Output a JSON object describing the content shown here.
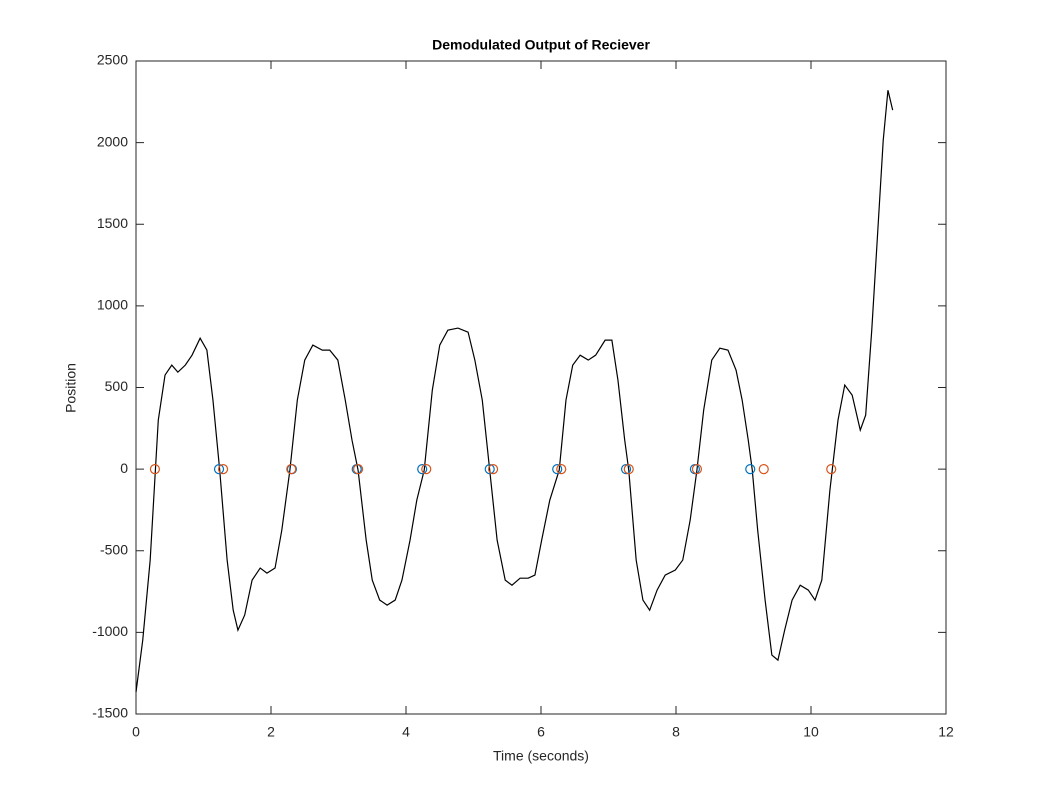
{
  "chart_data": {
    "type": "line",
    "title": "Demodulated Output of Reciever",
    "x_label": "Time (seconds)",
    "y_label": "Position",
    "xlim": [
      0,
      12
    ],
    "ylim": [
      -1500,
      2500
    ],
    "xticks": [
      0,
      2,
      4,
      6,
      8,
      10,
      12
    ],
    "yticks": [
      -1500,
      -1000,
      -500,
      0,
      500,
      1000,
      1500,
      2000,
      2500
    ],
    "series": [
      {
        "color": "#000000",
        "style": "line",
        "x": [
          0,
          0.1,
          0.21,
          0.33,
          0.43,
          0.53,
          0.62,
          0.73,
          0.83,
          0.95,
          1.05,
          1.14,
          1.24,
          1.35,
          1.44,
          1.51,
          1.61,
          1.72,
          1.84,
          1.94,
          2.06,
          2.16,
          2.28,
          2.39,
          2.5,
          2.62,
          2.76,
          2.87,
          2.99,
          3.1,
          3.2,
          3.29,
          3.41,
          3.5,
          3.61,
          3.72,
          3.84,
          3.94,
          4.06,
          4.16,
          4.27,
          4.39,
          4.5,
          4.62,
          4.77,
          4.92,
          5.02,
          5.13,
          5.24,
          5.35,
          5.47,
          5.57,
          5.69,
          5.81,
          5.91,
          6.01,
          6.13,
          6.27,
          6.37,
          6.47,
          6.58,
          6.7,
          6.81,
          6.95,
          7.05,
          7.14,
          7.24,
          7.3,
          7.41,
          7.51,
          7.61,
          7.72,
          7.84,
          7.99,
          8.1,
          8.21,
          8.31,
          8.41,
          8.53,
          8.65,
          8.77,
          8.89,
          8.98,
          9.07,
          9.13,
          9.21,
          9.32,
          9.42,
          9.51,
          9.61,
          9.72,
          9.84,
          9.96,
          10.06,
          10.16,
          10.28,
          10.4,
          10.5,
          10.61,
          10.73,
          10.81,
          10.9,
          10.99,
          11.07,
          11.14,
          11.21
        ],
        "values": [
          -1366,
          -1047,
          -557,
          300,
          576,
          637,
          594,
          637,
          698,
          802,
          729,
          423,
          -6,
          -557,
          -864,
          -986,
          -894,
          -680,
          -606,
          -637,
          -606,
          -374,
          -6,
          423,
          668,
          760,
          729,
          729,
          668,
          423,
          178,
          -6,
          -435,
          -680,
          -802,
          -833,
          -802,
          -680,
          -435,
          -190,
          -6,
          484,
          760,
          851,
          864,
          839,
          668,
          423,
          -6,
          -435,
          -680,
          -711,
          -668,
          -668,
          -649,
          -435,
          -190,
          -6,
          423,
          637,
          698,
          668,
          698,
          790,
          790,
          545,
          178,
          -6,
          -557,
          -802,
          -864,
          -741,
          -649,
          -618,
          -557,
          -312,
          -6,
          361,
          668,
          741,
          729,
          606,
          423,
          178,
          -6,
          -374,
          -802,
          -1139,
          -1170,
          -986,
          -802,
          -711,
          -741,
          -802,
          -680,
          -129,
          300,
          515,
          453,
          239,
          331,
          851,
          1464,
          2015,
          2321,
          2199
        ]
      },
      {
        "color": "#0072bd",
        "style": "marker",
        "x": [
          1.23,
          2.31,
          3.27,
          4.24,
          5.24,
          6.24,
          7.26,
          8.28,
          9.1
        ],
        "values": [
          0,
          0,
          0,
          0,
          0,
          0,
          0,
          0,
          0
        ]
      },
      {
        "color": "#d95319",
        "style": "marker",
        "x": [
          0.28,
          1.29,
          2.3,
          3.29,
          4.3,
          5.29,
          6.3,
          7.3,
          8.31,
          9.3,
          10.3
        ],
        "values": [
          0,
          0,
          0,
          0,
          0,
          0,
          0,
          0,
          0,
          0,
          0
        ]
      }
    ]
  }
}
